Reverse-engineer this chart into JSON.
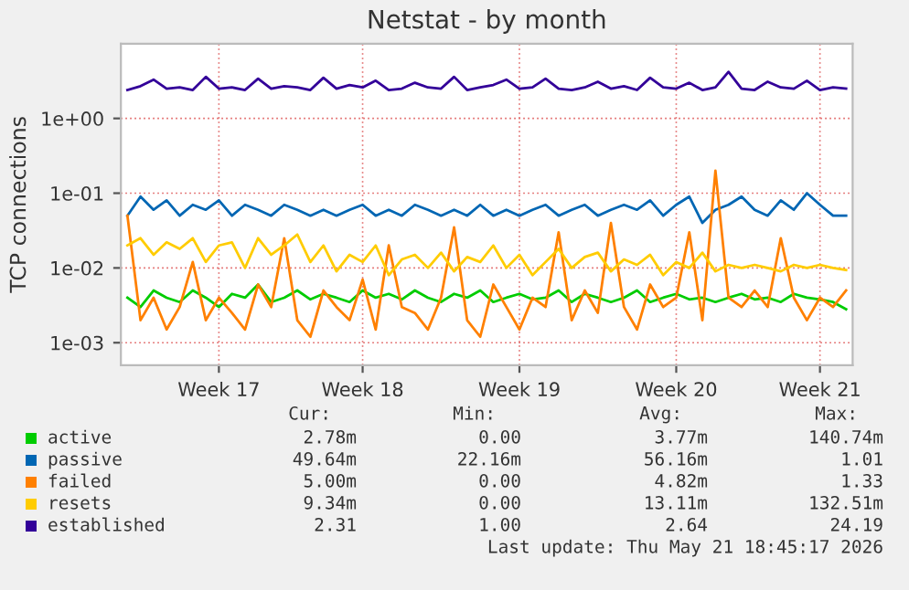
{
  "chart_data": {
    "type": "line",
    "title": "Netstat - by month",
    "ylabel": "TCP connections",
    "log": true,
    "grid": true,
    "legend": "bottom",
    "marker": "none",
    "line_style": "solid",
    "ylim": [
      0.0005,
      10
    ],
    "yticks": [
      {
        "value": 0.001,
        "label": "1e-03"
      },
      {
        "value": 0.01,
        "label": "1e-02"
      },
      {
        "value": 0.1,
        "label": "1e-01"
      },
      {
        "value": 1,
        "label": "1e+00"
      }
    ],
    "categories": [
      null,
      null,
      null,
      null,
      null,
      null,
      null,
      "Week 17",
      null,
      null,
      null,
      null,
      null,
      null,
      null,
      null,
      null,
      null,
      "Week 18",
      null,
      null,
      null,
      null,
      null,
      null,
      null,
      null,
      null,
      null,
      null,
      "Week 19",
      null,
      null,
      null,
      null,
      null,
      null,
      null,
      null,
      null,
      null,
      null,
      "Week 20",
      null,
      null,
      null,
      null,
      null,
      null,
      null,
      null,
      null,
      null,
      "Week 21",
      null,
      null
    ],
    "series": [
      {
        "name": "active",
        "color": "#00cc00",
        "values": [
          0.004,
          0.003,
          0.005,
          0.004,
          0.0035,
          0.005,
          0.004,
          0.003,
          0.0045,
          0.004,
          0.006,
          0.0035,
          0.004,
          0.005,
          0.0038,
          0.0045,
          0.004,
          0.0035,
          0.005,
          0.004,
          0.0045,
          0.0038,
          0.005,
          0.004,
          0.0035,
          0.0045,
          0.004,
          0.005,
          0.0035,
          0.004,
          0.0045,
          0.0038,
          0.004,
          0.005,
          0.0035,
          0.0045,
          0.004,
          0.0035,
          0.004,
          0.005,
          0.0035,
          0.004,
          0.0045,
          0.0038,
          0.004,
          0.0035,
          0.004,
          0.0045,
          0.0038,
          0.004,
          0.0035,
          0.0045,
          0.004,
          0.0038,
          0.0035,
          0.0028
        ]
      },
      {
        "name": "passive",
        "color": "#0066b3",
        "values": [
          0.05,
          0.09,
          0.06,
          0.08,
          0.05,
          0.07,
          0.06,
          0.08,
          0.05,
          0.07,
          0.06,
          0.05,
          0.07,
          0.06,
          0.05,
          0.06,
          0.05,
          0.06,
          0.07,
          0.05,
          0.06,
          0.05,
          0.07,
          0.06,
          0.05,
          0.06,
          0.05,
          0.07,
          0.05,
          0.06,
          0.05,
          0.06,
          0.07,
          0.05,
          0.06,
          0.07,
          0.05,
          0.06,
          0.07,
          0.06,
          0.08,
          0.05,
          0.07,
          0.09,
          0.04,
          0.06,
          0.07,
          0.09,
          0.06,
          0.05,
          0.08,
          0.06,
          0.1,
          0.07,
          0.05,
          0.05
        ]
      },
      {
        "name": "failed",
        "color": "#ff8000",
        "values": [
          0.05,
          0.002,
          0.004,
          0.0015,
          0.003,
          0.012,
          0.002,
          0.004,
          0.0025,
          0.0015,
          0.006,
          0.003,
          0.025,
          0.002,
          0.0012,
          0.005,
          0.003,
          0.002,
          0.007,
          0.0015,
          0.02,
          0.003,
          0.0025,
          0.0015,
          0.004,
          0.035,
          0.002,
          0.0012,
          0.006,
          0.003,
          0.0015,
          0.004,
          0.003,
          0.03,
          0.002,
          0.005,
          0.0025,
          0.04,
          0.003,
          0.0015,
          0.006,
          0.003,
          0.004,
          0.03,
          0.002,
          0.2,
          0.004,
          0.003,
          0.005,
          0.003,
          0.025,
          0.004,
          0.002,
          0.004,
          0.003,
          0.005
        ]
      },
      {
        "name": "resets",
        "color": "#ffcc00",
        "values": [
          0.02,
          0.025,
          0.015,
          0.022,
          0.018,
          0.025,
          0.012,
          0.02,
          0.022,
          0.01,
          0.025,
          0.015,
          0.02,
          0.028,
          0.012,
          0.02,
          0.009,
          0.015,
          0.012,
          0.02,
          0.008,
          0.013,
          0.015,
          0.01,
          0.016,
          0.009,
          0.014,
          0.012,
          0.02,
          0.01,
          0.015,
          0.008,
          0.012,
          0.018,
          0.01,
          0.014,
          0.016,
          0.009,
          0.013,
          0.011,
          0.015,
          0.008,
          0.012,
          0.01,
          0.016,
          0.009,
          0.011,
          0.01,
          0.011,
          0.01,
          0.009,
          0.011,
          0.01,
          0.011,
          0.01,
          0.0094
        ]
      },
      {
        "name": "established",
        "color": "#330099",
        "values": [
          2.4,
          2.7,
          3.3,
          2.5,
          2.6,
          2.4,
          3.6,
          2.5,
          2.6,
          2.4,
          3.4,
          2.5,
          2.7,
          2.6,
          2.4,
          3.5,
          2.5,
          2.8,
          2.6,
          3.2,
          2.4,
          2.5,
          3.0,
          2.6,
          2.5,
          3.6,
          2.4,
          2.6,
          2.8,
          3.3,
          2.5,
          2.6,
          3.4,
          2.5,
          2.4,
          2.6,
          3.1,
          2.5,
          2.7,
          2.4,
          3.5,
          2.6,
          2.5,
          3.0,
          2.4,
          2.6,
          4.2,
          2.5,
          2.4,
          3.1,
          2.6,
          2.5,
          3.2,
          2.4,
          2.6,
          2.5
        ]
      }
    ],
    "annotations": [
      "Cur:",
      "Min:",
      "Avg:",
      "Max:",
      "2.78m",
      "0.00",
      "3.77m",
      "140.74m",
      "49.64m",
      "22.16m",
      "56.16m",
      "1.01",
      "5.00m",
      "0.00",
      "4.82m",
      "1.33",
      "9.34m",
      "0.00",
      "13.11m",
      "132.51m",
      "2.31",
      "1.00",
      "2.64",
      "24.19",
      "Last update: Thu May 21 18:45:17 2026"
    ]
  }
}
